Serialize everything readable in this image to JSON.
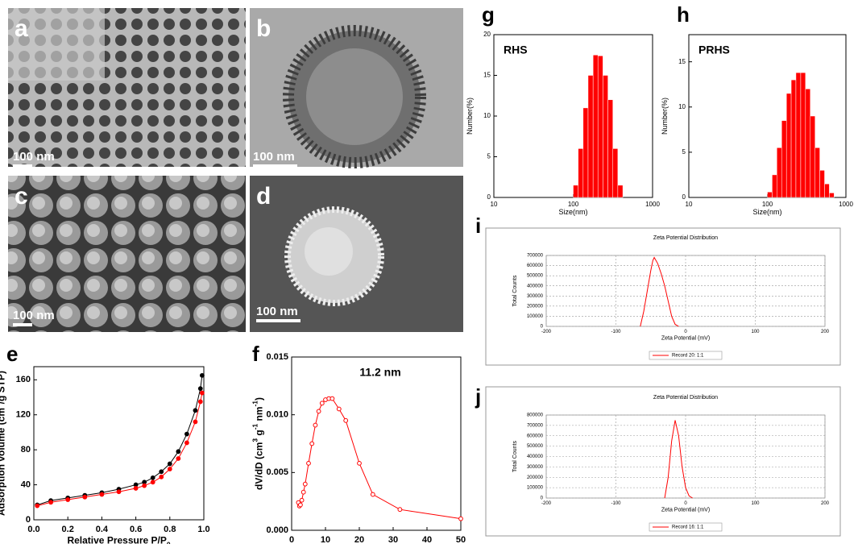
{
  "images": [
    {
      "label": "a",
      "scale_bar": "100 nm"
    },
    {
      "label": "b",
      "scale_bar": "100 nm"
    },
    {
      "label": "c",
      "scale_bar": "100 nm"
    },
    {
      "label": "d",
      "scale_bar": "100 nm"
    }
  ],
  "chart_data": [
    {
      "type": "line",
      "panel": "e",
      "marker": "filled",
      "xlabel": [
        {
          "text": "Relative Pressure P/P"
        },
        {
          "text": "0",
          "pos": "sub"
        }
      ],
      "ylabel": [
        {
          "text": "Adsorption volume (cm"
        },
        {
          "text": "3",
          "pos": "sup"
        },
        {
          "text": "/g STP)"
        }
      ],
      "x": [
        0.02,
        0.1,
        0.2,
        0.3,
        0.4,
        0.5,
        0.6,
        0.65,
        0.7,
        0.75,
        0.8,
        0.85,
        0.9,
        0.95,
        0.98,
        0.99
      ],
      "series": [
        {
          "color": "#000000",
          "values": [
            17,
            22,
            25,
            28,
            31,
            35,
            40,
            43,
            48,
            55,
            64,
            78,
            98,
            125,
            150,
            165
          ]
        },
        {
          "color": "#ff0000",
          "values": [
            16,
            20,
            23,
            26,
            29,
            32,
            36,
            39,
            43,
            49,
            58,
            70,
            88,
            112,
            135,
            145
          ]
        }
      ],
      "xlim": [
        0,
        1
      ],
      "xticks": [
        {
          "value": 0,
          "label": "0.0"
        },
        0.2,
        0.4,
        0.6,
        0.8,
        {
          "value": 1,
          "label": "1.0"
        }
      ],
      "ylim": [
        0,
        175
      ],
      "yticks": [
        0,
        40,
        80,
        120,
        160
      ]
    },
    {
      "type": "line",
      "panel": "f",
      "marker": "open",
      "annotation": "11.2 nm",
      "xlabel": [
        {
          "text": "Pore size (nm)"
        }
      ],
      "ylabel": [
        {
          "text": "dV/dD (cm"
        },
        {
          "text": "3",
          "pos": "sup"
        },
        {
          "text": " g"
        },
        {
          "text": "-1",
          "pos": "sup"
        },
        {
          "text": " nm"
        },
        {
          "text": "-1",
          "pos": "sup"
        },
        {
          "text": ")"
        }
      ],
      "x": [
        2,
        2.3,
        2.6,
        3,
        3.5,
        4,
        5,
        6,
        7,
        8,
        9,
        10,
        11,
        12,
        14,
        16,
        20,
        24,
        32,
        50
      ],
      "series": [
        {
          "color": "#ff0000",
          "values": [
            0.0024,
            0.0021,
            0.0022,
            0.0026,
            0.0033,
            0.004,
            0.0058,
            0.0075,
            0.0091,
            0.0103,
            0.011,
            0.0113,
            0.0114,
            0.0114,
            0.0105,
            0.0095,
            0.0058,
            0.0031,
            0.0018,
            0.001
          ]
        }
      ],
      "xlim": [
        0,
        50
      ],
      "xticks": [
        0,
        10,
        20,
        30,
        40,
        50
      ],
      "ylim": [
        0,
        0.015
      ],
      "yticks": [
        {
          "value": 0,
          "label": "0.000"
        },
        0.005,
        {
          "value": 0.01,
          "label": "0.010"
        },
        0.015
      ]
    },
    {
      "type": "histogram",
      "panel": "g",
      "annotation": "RHS",
      "color": "#ff0000",
      "xscale": "log",
      "xlabel": [
        {
          "text": "Size(nm)"
        }
      ],
      "ylabel": [
        {
          "text": "Number(%)"
        }
      ],
      "bins": [
        100,
        115.5,
        133.4,
        154,
        178,
        205,
        237,
        274,
        316,
        365,
        422
      ],
      "values": [
        1.5,
        6,
        11,
        15,
        17.5,
        17.4,
        15,
        12,
        6,
        1.5
      ],
      "xlim": [
        10,
        1000
      ],
      "xticks": [
        10,
        100,
        1000
      ],
      "ylim": [
        0,
        20
      ],
      "yticks": [
        0,
        5,
        10,
        15,
        20
      ]
    },
    {
      "type": "histogram",
      "panel": "h",
      "annotation": "PRHS",
      "color": "#ff0000",
      "xscale": "log",
      "xlabel": [
        {
          "text": "Size(nm)"
        }
      ],
      "ylabel": [
        {
          "text": "Number(%)"
        }
      ],
      "bins": [
        100,
        115,
        132,
        152,
        175,
        201,
        231,
        266,
        306,
        352,
        405,
        465,
        535,
        615,
        708
      ],
      "values": [
        0.6,
        2.5,
        5.5,
        8.5,
        11.5,
        13,
        13.8,
        13.8,
        12,
        9,
        5.5,
        3,
        1.5,
        0.5
      ],
      "xlim": [
        10,
        1000
      ],
      "xticks": [
        10,
        100,
        1000
      ],
      "ylim": [
        0,
        18
      ],
      "yticks": [
        0,
        5,
        10,
        15
      ]
    },
    {
      "type": "line",
      "panel": "i",
      "title": "Zeta Potential Distribution",
      "grid": true,
      "xlabel": [
        {
          "text": "Zeta Potential (mV)"
        }
      ],
      "ylabel": [
        {
          "text": "Total Counts"
        }
      ],
      "x": [
        -65,
        -60,
        -55,
        -50,
        -47,
        -45,
        -40,
        -35,
        -30,
        -25,
        -20,
        -15,
        -10
      ],
      "series": [
        {
          "name": "Record 20: 1:1",
          "color": "#ff0000",
          "values": [
            0,
            150000,
            350000,
            550000,
            650000,
            680000,
            620000,
            520000,
            400000,
            250000,
            100000,
            20000,
            0
          ]
        }
      ],
      "xlim": [
        -200,
        200
      ],
      "xticks": [
        -200,
        -100,
        0,
        100,
        200
      ],
      "ylim": [
        0,
        700000
      ],
      "yticks": [
        0,
        100000,
        200000,
        300000,
        400000,
        500000,
        600000,
        700000
      ]
    },
    {
      "type": "line",
      "panel": "j",
      "title": "Zeta Potential Distribution",
      "grid": true,
      "xlabel": [
        {
          "text": "Zeta Potential (mV)"
        }
      ],
      "ylabel": [
        {
          "text": "Total Counts"
        }
      ],
      "x": [
        -30,
        -25,
        -20,
        -15,
        -10,
        -5,
        0,
        5,
        10
      ],
      "series": [
        {
          "name": "Record 16: 1:1",
          "color": "#ff0000",
          "values": [
            0,
            200000,
            550000,
            750000,
            600000,
            300000,
            100000,
            20000,
            0
          ]
        }
      ],
      "xlim": [
        -200,
        200
      ],
      "xticks": [
        -200,
        -100,
        0,
        100,
        200
      ],
      "ylim": [
        0,
        800000
      ],
      "yticks": [
        0,
        100000,
        200000,
        300000,
        400000,
        500000,
        600000,
        700000,
        800000
      ]
    }
  ]
}
